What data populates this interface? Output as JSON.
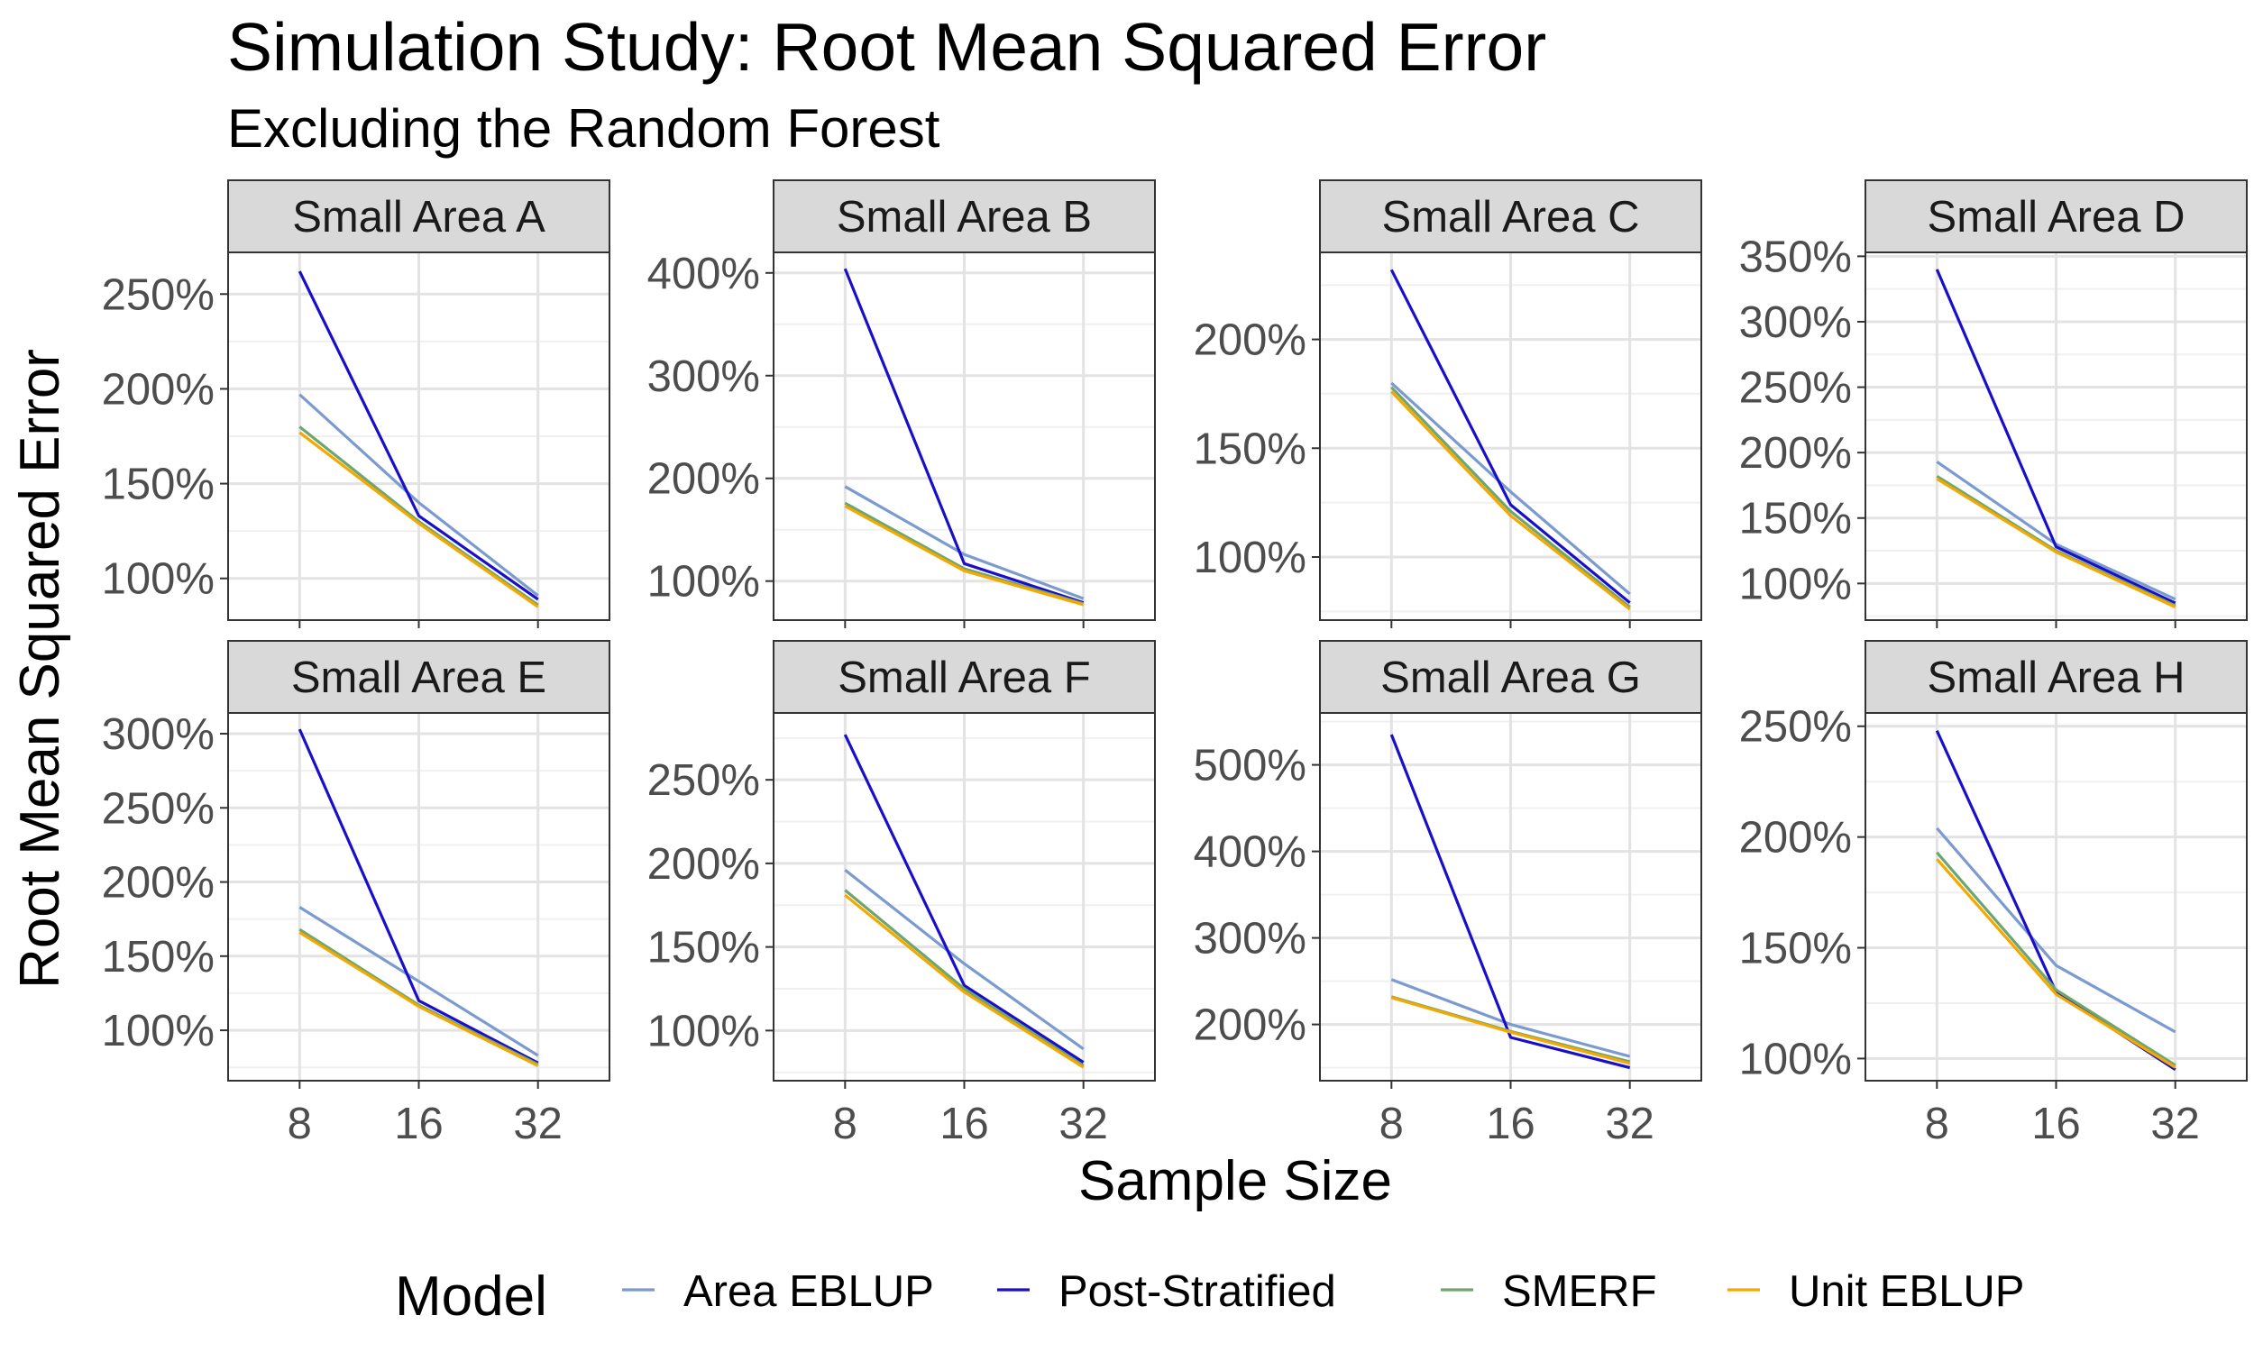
{
  "chart_data": {
    "type": "line",
    "title": "Simulation Study: Root Mean Squared Error",
    "subtitle": "Excluding the Random Forest",
    "xlabel": "Sample Size",
    "ylabel": "Root Mean Squared Error",
    "legend": {
      "title": "Model",
      "placement": "bottom",
      "entries": [
        {
          "name": "Area EBLUP",
          "color": "#7B9BD0"
        },
        {
          "name": "Post-Stratified",
          "color": "#1A0FC8"
        },
        {
          "name": "SMERF",
          "color": "#6FA66F"
        },
        {
          "name": "Unit EBLUP",
          "color": "#F5A800"
        }
      ]
    },
    "x": [
      8,
      16,
      32
    ],
    "x_tick_labels": [
      "8",
      "16",
      "32"
    ],
    "grid": true,
    "panels": [
      {
        "label": "Small Area A",
        "ylim": [
          78,
          272
        ],
        "y_ticks": [
          100,
          150,
          200,
          250
        ],
        "y_tick_labels": [
          "100%",
          "150%",
          "200%",
          "250%"
        ],
        "series": [
          {
            "name": "Area EBLUP",
            "values": [
              197,
              140,
              91
            ]
          },
          {
            "name": "Post-Stratified",
            "values": [
              262,
              133,
              89
            ]
          },
          {
            "name": "SMERF",
            "values": [
              180,
              130,
              86
            ]
          },
          {
            "name": "Unit EBLUP",
            "values": [
              177,
              129,
              85
            ]
          }
        ]
      },
      {
        "label": "Small Area B",
        "ylim": [
          62,
          420
        ],
        "y_ticks": [
          100,
          200,
          300,
          400
        ],
        "y_tick_labels": [
          "100%",
          "200%",
          "300%",
          "400%"
        ],
        "series": [
          {
            "name": "Area EBLUP",
            "values": [
              192,
              126,
              83
            ]
          },
          {
            "name": "Post-Stratified",
            "values": [
              404,
              117,
              79
            ]
          },
          {
            "name": "SMERF",
            "values": [
              176,
              112,
              78
            ]
          },
          {
            "name": "Unit EBLUP",
            "values": [
              173,
              110,
              77
            ]
          }
        ]
      },
      {
        "label": "Small Area C",
        "ylim": [
          71,
          240
        ],
        "y_ticks": [
          100,
          150,
          200
        ],
        "y_tick_labels": [
          "100%",
          "150%",
          "200%"
        ],
        "series": [
          {
            "name": "Area EBLUP",
            "values": [
              180,
              130,
              83
            ]
          },
          {
            "name": "Post-Stratified",
            "values": [
              232,
              124,
              79
            ]
          },
          {
            "name": "SMERF",
            "values": [
              178,
              121,
              77
            ]
          },
          {
            "name": "Unit EBLUP",
            "values": [
              176,
              119,
              76
            ]
          }
        ]
      },
      {
        "label": "Small Area D",
        "ylim": [
          72,
          353
        ],
        "y_ticks": [
          100,
          150,
          200,
          250,
          300,
          350
        ],
        "y_tick_labels": [
          "100%",
          "150%",
          "200%",
          "250%",
          "300%",
          "350%"
        ],
        "series": [
          {
            "name": "Area EBLUP",
            "values": [
              193,
              130,
              88
            ]
          },
          {
            "name": "Post-Stratified",
            "values": [
              340,
              128,
              85
            ]
          },
          {
            "name": "SMERF",
            "values": [
              182,
              125,
              83
            ]
          },
          {
            "name": "Unit EBLUP",
            "values": [
              180,
              124,
              82
            ]
          }
        ]
      },
      {
        "label": "Small Area E",
        "ylim": [
          66,
          314
        ],
        "y_ticks": [
          100,
          150,
          200,
          250,
          300
        ],
        "y_tick_labels": [
          "100%",
          "150%",
          "200%",
          "250%",
          "300%"
        ],
        "series": [
          {
            "name": "Area EBLUP",
            "values": [
              183,
              133,
              83
            ]
          },
          {
            "name": "Post-Stratified",
            "values": [
              303,
              120,
              78
            ]
          },
          {
            "name": "SMERF",
            "values": [
              168,
              117,
              77
            ]
          },
          {
            "name": "Unit EBLUP",
            "values": [
              166,
              116,
              76
            ]
          }
        ]
      },
      {
        "label": "Small Area F",
        "ylim": [
          70,
          290
        ],
        "y_ticks": [
          100,
          150,
          200,
          250
        ],
        "y_tick_labels": [
          "100%",
          "150%",
          "200%",
          "250%"
        ],
        "series": [
          {
            "name": "Area EBLUP",
            "values": [
              196,
              140,
              89
            ]
          },
          {
            "name": "Post-Stratified",
            "values": [
              277,
              127,
              81
            ]
          },
          {
            "name": "SMERF",
            "values": [
              184,
              125,
              79
            ]
          },
          {
            "name": "Unit EBLUP",
            "values": [
              181,
              123,
              78
            ]
          }
        ]
      },
      {
        "label": "Small Area G",
        "ylim": [
          135,
          560
        ],
        "y_ticks": [
          200,
          300,
          400,
          500
        ],
        "y_tick_labels": [
          "200%",
          "300%",
          "400%",
          "500%"
        ],
        "series": [
          {
            "name": "Area EBLUP",
            "values": [
              252,
              200,
              163
            ]
          },
          {
            "name": "Post-Stratified",
            "values": [
              535,
              185,
              150
            ]
          },
          {
            "name": "SMERF",
            "values": [
              232,
              192,
              157
            ]
          },
          {
            "name": "Unit EBLUP",
            "values": [
              231,
              191,
              155
            ]
          }
        ]
      },
      {
        "label": "Small Area H",
        "ylim": [
          90,
          256
        ],
        "y_ticks": [
          100,
          150,
          200,
          250
        ],
        "y_tick_labels": [
          "100%",
          "150%",
          "200%",
          "250%"
        ],
        "series": [
          {
            "name": "Area EBLUP",
            "values": [
              204,
              142,
              112
            ]
          },
          {
            "name": "Post-Stratified",
            "values": [
              248,
              130,
              95
            ]
          },
          {
            "name": "SMERF",
            "values": [
              193,
              131,
              97
            ]
          },
          {
            "name": "Unit EBLUP",
            "values": [
              190,
              129,
              96
            ]
          }
        ]
      }
    ]
  }
}
